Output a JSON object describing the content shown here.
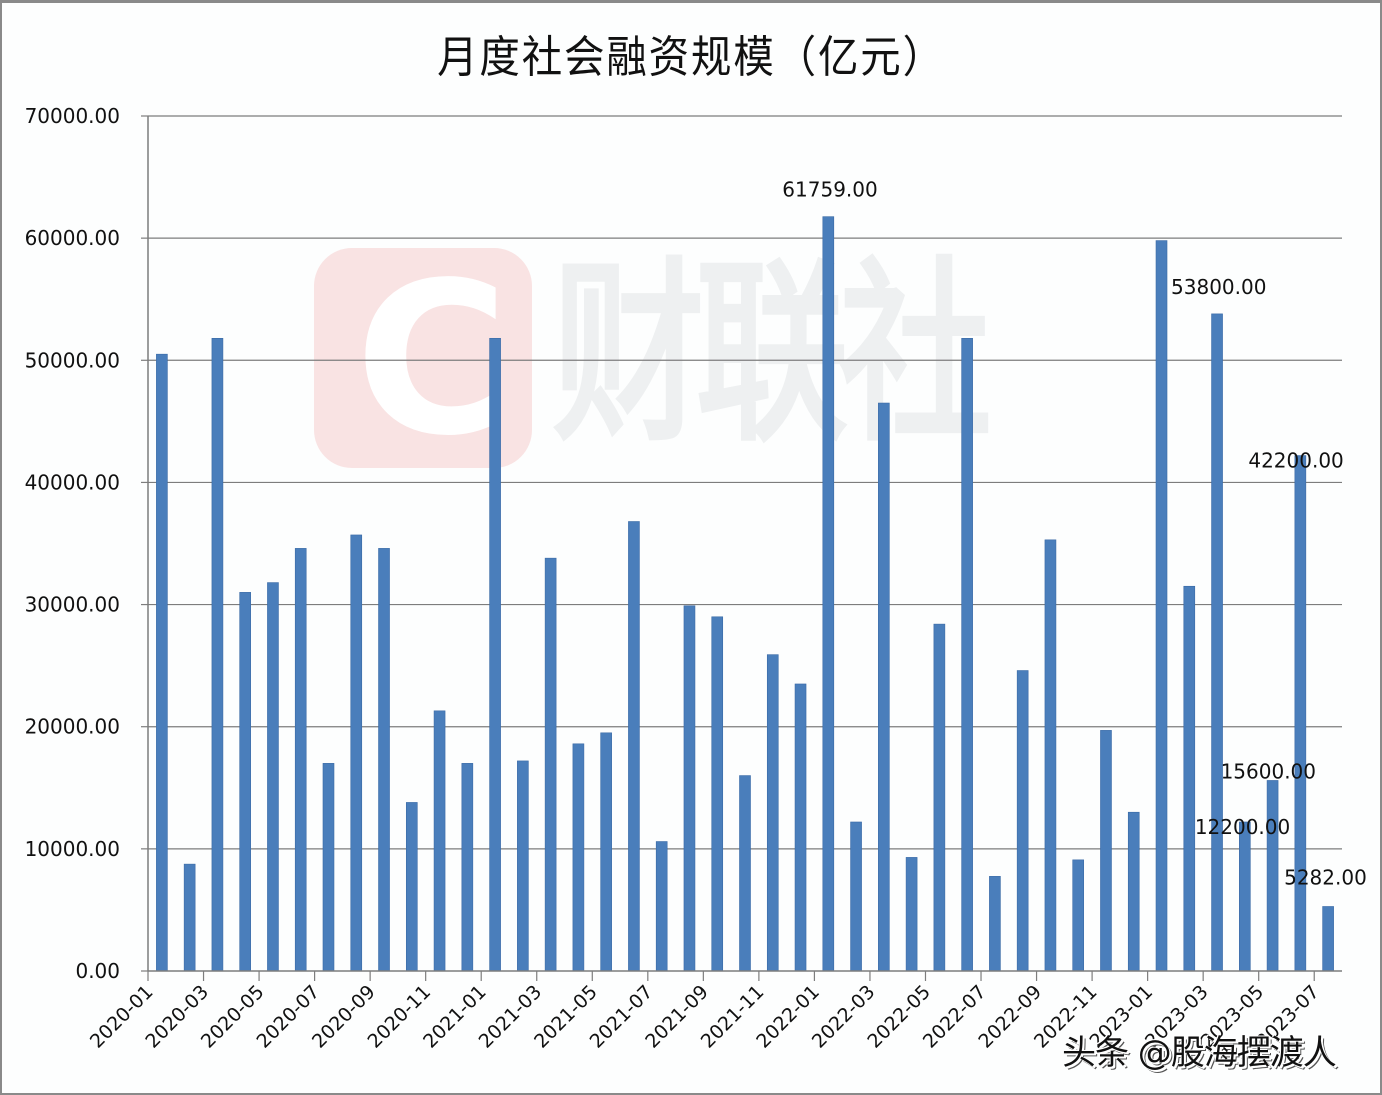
{
  "chart_data": {
    "type": "bar",
    "title": "月度社会融资规模（亿元）",
    "xlabel": "",
    "ylabel": "",
    "ylim": [
      0,
      70000
    ],
    "yticks": [
      "0.00",
      "10000.00",
      "20000.00",
      "30000.00",
      "40000.00",
      "50000.00",
      "60000.00",
      "70000.00"
    ],
    "grid": true,
    "legend": null,
    "bar_color": "#4a7ebb",
    "categories": [
      "2020-01",
      "2020-02",
      "2020-03",
      "2020-04",
      "2020-05",
      "2020-06",
      "2020-07",
      "2020-08",
      "2020-09",
      "2020-10",
      "2020-11",
      "2020-12",
      "2021-01",
      "2021-02",
      "2021-03",
      "2021-04",
      "2021-05",
      "2021-06",
      "2021-07",
      "2021-08",
      "2021-09",
      "2021-10",
      "2021-11",
      "2021-12",
      "2022-01",
      "2022-02",
      "2022-03",
      "2022-04",
      "2022-05",
      "2022-06",
      "2022-07",
      "2022-08",
      "2022-09",
      "2022-10",
      "2022-11",
      "2022-12",
      "2023-01",
      "2023-02",
      "2023-03",
      "2023-04",
      "2023-05",
      "2023-06",
      "2023-07"
    ],
    "xtick_labels": [
      "2020-01",
      "2020-03",
      "2020-05",
      "2020-07",
      "2020-09",
      "2020-11",
      "2021-01",
      "2021-03",
      "2021-05",
      "2021-07",
      "2021-09",
      "2021-11",
      "2022-01",
      "2022-03",
      "2022-05",
      "2022-07",
      "2022-09",
      "2022-11",
      "2023-01",
      "2023-03",
      "2023-05",
      "2023-07"
    ],
    "values": [
      50500,
      8750,
      51800,
      31000,
      31800,
      34600,
      17000,
      35700,
      34600,
      13800,
      21300,
      17000,
      51800,
      17200,
      33800,
      18600,
      19500,
      36800,
      10600,
      29900,
      29000,
      16000,
      25900,
      23500,
      61759,
      12200,
      46500,
      9300,
      28400,
      51800,
      7750,
      24600,
      35300,
      9100,
      19700,
      13000,
      59800,
      31500,
      53800,
      12200,
      15600,
      42200,
      5282
    ],
    "annotations": [
      {
        "category": "2022-01",
        "text": "61759.00"
      },
      {
        "category": "2023-03",
        "text": "53800.00"
      },
      {
        "category": "2023-06",
        "text": "42200.00"
      },
      {
        "category": "2023-05",
        "text": "15600.00"
      },
      {
        "category": "2023-04",
        "text": "12200.00"
      },
      {
        "category": "2023-07",
        "text": "5282.00"
      }
    ]
  },
  "watermark": {
    "logo_letter": "C",
    "brand_text": "财联社"
  },
  "credit": {
    "text": "头条 @股海摆渡人"
  }
}
